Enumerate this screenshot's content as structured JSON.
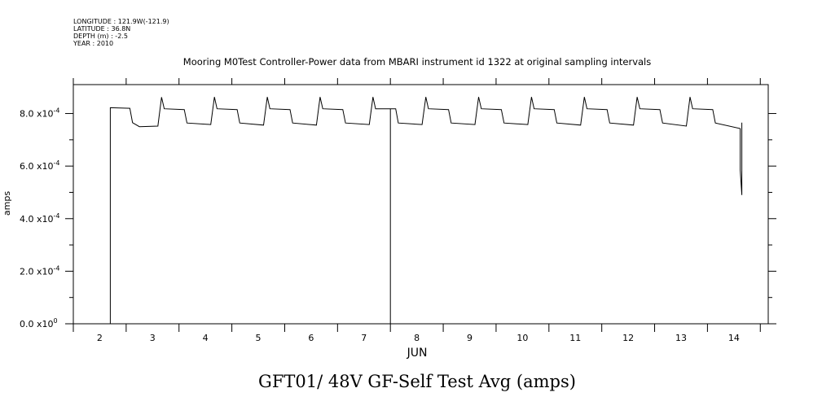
{
  "header": {
    "longitude": "LONGITUDE : 121.9W(-121.9)",
    "latitude": "LATITUDE : 36.8N",
    "depth": "DEPTH (m) : -2.5",
    "year": "YEAR : 2010"
  },
  "chart_data": {
    "type": "line",
    "title": "Mooring M0Test Controller-Power data from MBARI instrument id 1322 at original sampling intervals",
    "subtitle": "GFT01/ 48V GF-Self Test Avg (amps)",
    "xlabel": "JUN",
    "ylabel": "amps",
    "x_tick_labels": [
      "2",
      "3",
      "4",
      "5",
      "6",
      "7",
      "8",
      "9",
      "10",
      "11",
      "12",
      "13",
      "14"
    ],
    "y_tick_labels": [
      {
        "mantissa": "0.0 x10",
        "exponent": "0"
      },
      {
        "mantissa": "2.0 x10",
        "exponent": "-4"
      },
      {
        "mantissa": "4.0 x10",
        "exponent": "-4"
      },
      {
        "mantissa": "6.0 x10",
        "exponent": "-4"
      },
      {
        "mantissa": "8.0 x10",
        "exponent": "-4"
      }
    ],
    "xlim": [
      1.5,
      14.65
    ],
    "ylim": [
      0,
      0.00091
    ],
    "grid": false,
    "series": [
      {
        "x": [
          2.2,
          2.2,
          2.57,
          2.62,
          2.75,
          3.1,
          3.17,
          3.22,
          3.6,
          3.65,
          4.1,
          4.17,
          4.22,
          4.6,
          4.65,
          5.1,
          5.17,
          5.22,
          5.6,
          5.65,
          6.1,
          6.17,
          6.22,
          6.6,
          6.65,
          7.1,
          7.17,
          7.22,
          7.5,
          7.5,
          7.5,
          7.5,
          7.6,
          7.65,
          8.1,
          8.17,
          8.22,
          8.6,
          8.65,
          9.1,
          9.17,
          9.22,
          9.6,
          9.65,
          10.1,
          10.17,
          10.22,
          10.6,
          10.65,
          11.1,
          11.17,
          11.22,
          11.6,
          11.65,
          12.1,
          12.17,
          12.22,
          12.6,
          12.65,
          13.1,
          13.17,
          13.22,
          13.6,
          13.65,
          14.12,
          14.12,
          14.15,
          14.15,
          14.15
        ],
        "y": [
          0,
          0.000822,
          0.00082,
          0.000765,
          0.00075,
          0.000752,
          0.000862,
          0.000818,
          0.000815,
          0.000764,
          0.000758,
          0.000863,
          0.000818,
          0.000815,
          0.000764,
          0.000756,
          0.000863,
          0.000818,
          0.000815,
          0.000764,
          0.000756,
          0.000863,
          0.000818,
          0.000815,
          0.000764,
          0.000758,
          0.000863,
          0.000818,
          0.000818,
          0.0,
          0.000418,
          0.000818,
          0.000818,
          0.000764,
          0.000758,
          0.000863,
          0.000818,
          0.000815,
          0.000764,
          0.000758,
          0.000863,
          0.000818,
          0.000815,
          0.000764,
          0.000758,
          0.000863,
          0.000818,
          0.000815,
          0.000764,
          0.000756,
          0.000863,
          0.000818,
          0.000815,
          0.000764,
          0.000756,
          0.000863,
          0.000818,
          0.000815,
          0.000764,
          0.000752,
          0.000863,
          0.000818,
          0.000815,
          0.000764,
          0.000743,
          0.000585,
          0.00049,
          0.000765,
          0.00072
        ]
      }
    ]
  }
}
